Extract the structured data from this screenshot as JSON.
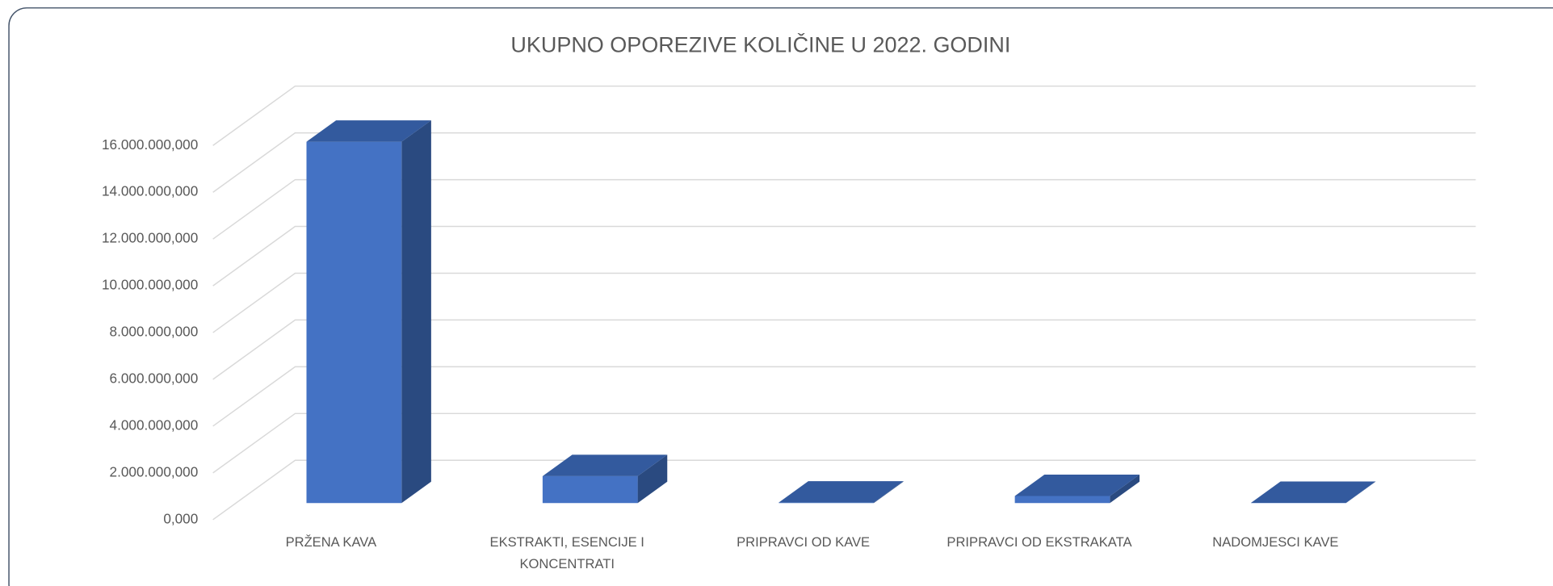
{
  "chart_data": {
    "type": "bar3d",
    "title": "UKUPNO OPOREZIVE KOLIČINE U 2022. GODINI",
    "categories": [
      "PRŽENA KAVA",
      "EKSTRAKTI, ESENCIJE I KONCENTRATI",
      "PRIPRAVCI OD KAVE",
      "PRIPRAVCI OD EKSTRAKATA",
      "NADOMJESCI KAVE"
    ],
    "values": [
      15450000000,
      1150000000,
      20000000,
      300000000,
      10000000
    ],
    "color": "#4472c4",
    "ylim": [
      0,
      16000000000
    ],
    "yticks": [
      {
        "value": 0,
        "label": "0,000"
      },
      {
        "value": 2000000000,
        "label": "2.000.000,000"
      },
      {
        "value": 4000000000,
        "label": "4.000.000,000"
      },
      {
        "value": 6000000000,
        "label": "6.000.000,000"
      },
      {
        "value": 8000000000,
        "label": "8.000.000,000"
      },
      {
        "value": 10000000000,
        "label": "10.000.000,000"
      },
      {
        "value": 12000000000,
        "label": "12.000.000,000"
      },
      {
        "value": 14000000000,
        "label": "14.000.000,000"
      },
      {
        "value": 16000000000,
        "label": "16.000.000,000"
      }
    ],
    "grid": true
  }
}
